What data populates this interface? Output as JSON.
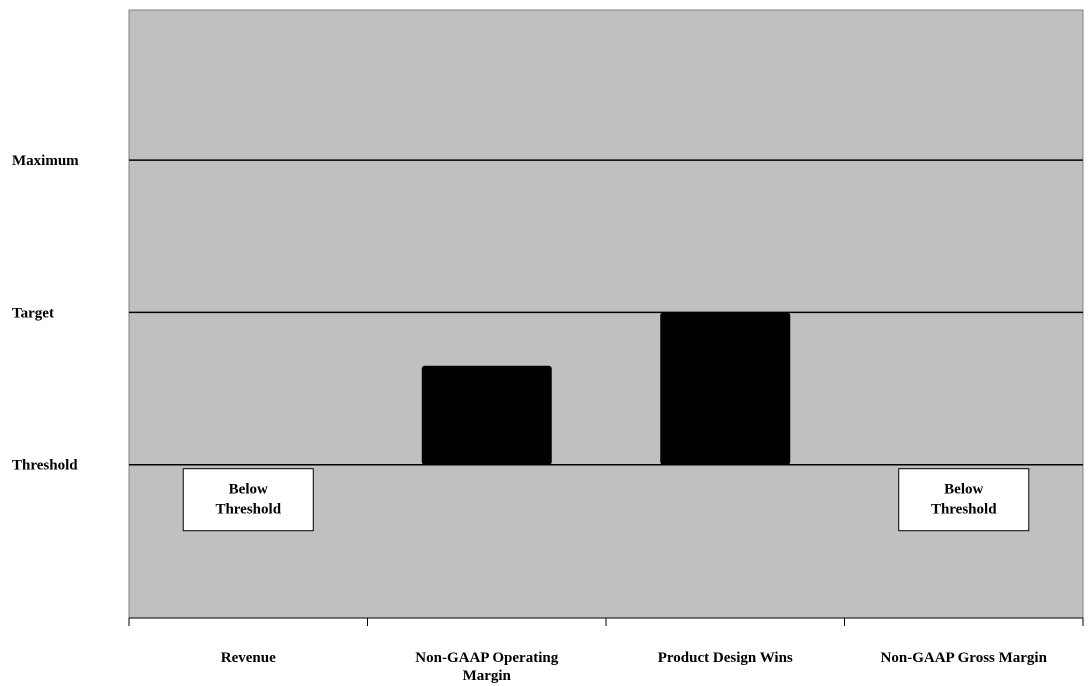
{
  "chart_data": {
    "type": "bar",
    "categories": [
      "Revenue",
      "Non-GAAP Operating Margin",
      "Product Design Wins",
      "Non-GAAP Gross Margin"
    ],
    "levels": [
      "Threshold",
      "Target",
      "Maximum"
    ],
    "level_values": [
      1,
      2,
      3
    ],
    "ylim": [
      0,
      4
    ],
    "values": [
      null,
      1.65,
      2.0,
      null
    ],
    "bar_base": 1,
    "annotations": [
      {
        "category_index": 0,
        "text": "Below Threshold",
        "lines": [
          "Below",
          "Threshold"
        ]
      },
      {
        "category_index": 3,
        "text": "Below Threshold",
        "lines": [
          "Below",
          "Threshold"
        ]
      }
    ],
    "title": "",
    "xlabel": "",
    "ylabel": "",
    "grid": true,
    "colors": {
      "plot_bg": "#c0c0c0",
      "bar": "#000000",
      "gridline": "#000000",
      "note_bg": "#ffffff"
    }
  }
}
